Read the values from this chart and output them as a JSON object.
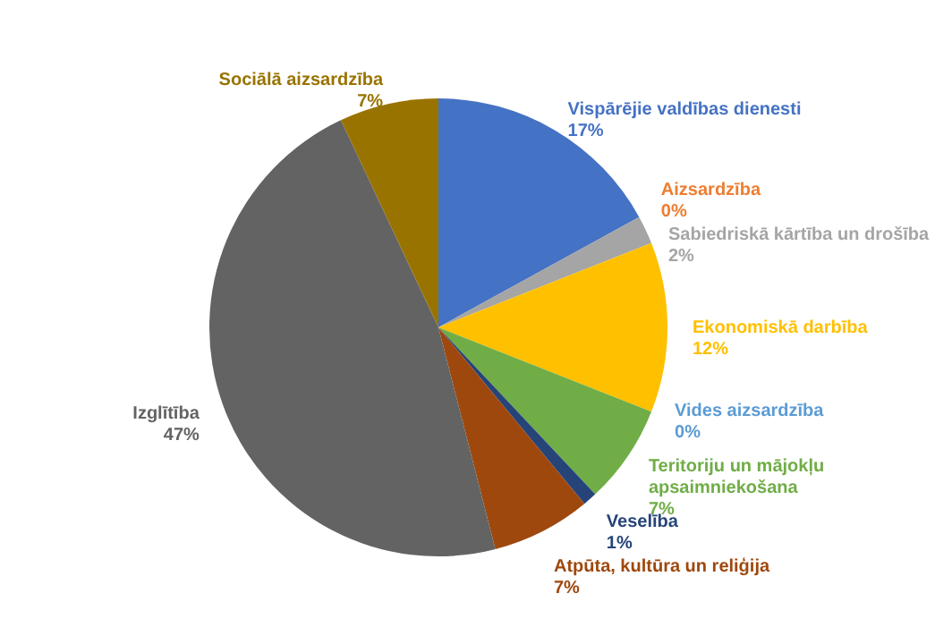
{
  "chart_data": {
    "type": "pie",
    "categories": [
      "Vispārējie valdības dienesti",
      "Aizsardzība",
      "Sabiedriskā kārtība un drošība",
      "Ekonomiskā darbība",
      "Vides aizsardzība",
      "Teritoriju un mājokļu apsaimniekošana",
      "Veselība",
      "Atpūta, kultūra un reliģija",
      "Izglītība",
      "Sociālā aizsardzība"
    ],
    "values": [
      17,
      0,
      2,
      12,
      0,
      7,
      1,
      7,
      47,
      7
    ],
    "value_labels": [
      "17%",
      "0%",
      "2%",
      "12%",
      "0%",
      "7%",
      "1%",
      "7%",
      "47%",
      "7%"
    ],
    "colors": [
      "#4472c4",
      "#ed7d31",
      "#a5a5a5",
      "#ffc000",
      "#5b9bd5",
      "#70ad47",
      "#264478",
      "#9e480e",
      "#636363",
      "#997300"
    ]
  }
}
